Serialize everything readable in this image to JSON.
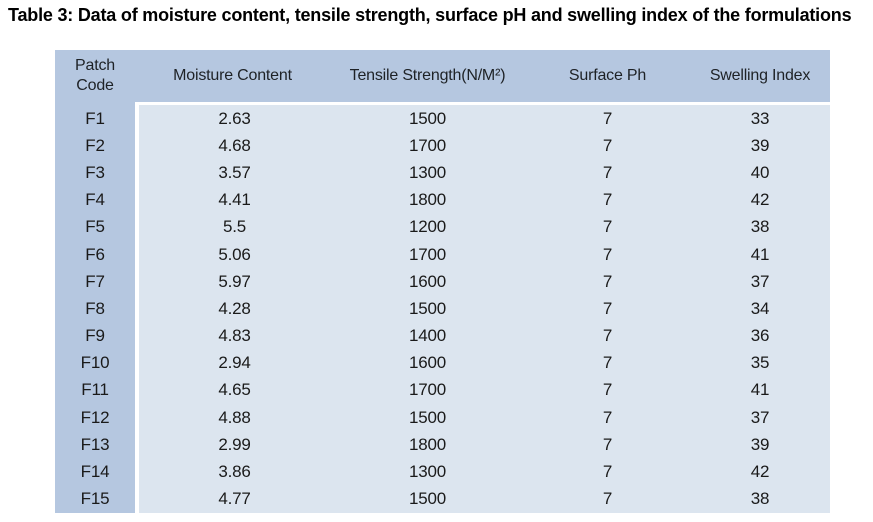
{
  "title": "Table 3: Data of moisture content, tensile strength, surface pH and swelling index of the formulations",
  "colors": {
    "header_bg": "#b5c7e0",
    "first_column_bg": "#b5c7e0",
    "body_bg": "#dce5ef",
    "page_bg": "#ffffff",
    "text": "#1a1a1a"
  },
  "table": {
    "headers": [
      "Patch Code",
      "Moisture Content",
      "Tensile Strength(N/M²)",
      "Surface Ph",
      "Swelling Index"
    ],
    "rows": [
      {
        "code": "F1",
        "moisture": "2.63",
        "tensile": "1500",
        "ph": "7",
        "swelling": "33"
      },
      {
        "code": "F2",
        "moisture": "4.68",
        "tensile": "1700",
        "ph": "7",
        "swelling": "39"
      },
      {
        "code": "F3",
        "moisture": "3.57",
        "tensile": "1300",
        "ph": "7",
        "swelling": "40"
      },
      {
        "code": "F4",
        "moisture": "4.41",
        "tensile": "1800",
        "ph": "7",
        "swelling": "42"
      },
      {
        "code": "F5",
        "moisture": "5.5",
        "tensile": "1200",
        "ph": "7",
        "swelling": "38"
      },
      {
        "code": "F6",
        "moisture": "5.06",
        "tensile": "1700",
        "ph": "7",
        "swelling": "41"
      },
      {
        "code": "F7",
        "moisture": "5.97",
        "tensile": "1600",
        "ph": "7",
        "swelling": "37"
      },
      {
        "code": "F8",
        "moisture": "4.28",
        "tensile": "1500",
        "ph": "7",
        "swelling": "34"
      },
      {
        "code": "F9",
        "moisture": "4.83",
        "tensile": "1400",
        "ph": "7",
        "swelling": "36"
      },
      {
        "code": "F10",
        "moisture": "2.94",
        "tensile": "1600",
        "ph": "7",
        "swelling": "35"
      },
      {
        "code": "F11",
        "moisture": "4.65",
        "tensile": "1700",
        "ph": "7",
        "swelling": "41"
      },
      {
        "code": "F12",
        "moisture": "4.88",
        "tensile": "1500",
        "ph": "7",
        "swelling": "37"
      },
      {
        "code": "F13",
        "moisture": "2.99",
        "tensile": "1800",
        "ph": "7",
        "swelling": "39"
      },
      {
        "code": "F14",
        "moisture": "3.86",
        "tensile": "1300",
        "ph": "7",
        "swelling": "42"
      },
      {
        "code": "F15",
        "moisture": "4.77",
        "tensile": "1500",
        "ph": "7",
        "swelling": "38"
      }
    ]
  },
  "chart_data": {
    "type": "table",
    "title": "Table 3: Data of moisture content, tensile strength, surface pH and swelling index of the formulations",
    "columns": [
      "Patch Code",
      "Moisture Content",
      "Tensile Strength(N/M²)",
      "Surface Ph",
      "Swelling Index"
    ],
    "patch_codes": [
      "F1",
      "F2",
      "F3",
      "F4",
      "F5",
      "F6",
      "F7",
      "F8",
      "F9",
      "F10",
      "F11",
      "F12",
      "F13",
      "F14",
      "F15"
    ],
    "moisture_content": [
      2.63,
      4.68,
      3.57,
      4.41,
      5.5,
      5.06,
      5.97,
      4.28,
      4.83,
      2.94,
      4.65,
      4.88,
      2.99,
      3.86,
      4.77
    ],
    "tensile_strength": [
      1500,
      1700,
      1300,
      1800,
      1200,
      1700,
      1600,
      1500,
      1400,
      1600,
      1700,
      1500,
      1800,
      1300,
      1500
    ],
    "surface_ph": [
      7,
      7,
      7,
      7,
      7,
      7,
      7,
      7,
      7,
      7,
      7,
      7,
      7,
      7,
      7
    ],
    "swelling_index": [
      33,
      39,
      40,
      42,
      38,
      41,
      37,
      34,
      36,
      35,
      41,
      37,
      39,
      42,
      38
    ]
  }
}
